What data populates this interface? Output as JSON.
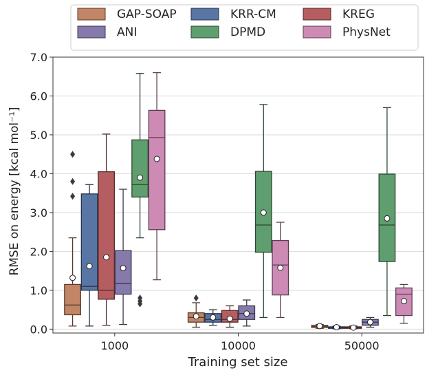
{
  "chart_data": {
    "type": "box",
    "xlabel": "Training set size",
    "ylabel": "RMSE on energy [kcal mol⁻¹]",
    "ylim": [
      -0.1,
      7.0
    ],
    "yticks": [
      "0.0",
      "1.0",
      "2.0",
      "3.0",
      "4.0",
      "5.0",
      "6.0",
      "7.0"
    ],
    "grid": "horizontal",
    "legend_placement": "top",
    "categories": [
      "1000",
      "10000",
      "50000"
    ],
    "series": [
      {
        "name": "GAP-SOAP",
        "color": "#c28565",
        "boxes": [
          {
            "whisker_low": 0.08,
            "q1": 0.37,
            "median": 0.62,
            "q3": 1.15,
            "whisker_high": 2.35,
            "mean": 1.32,
            "outliers": [
              3.42,
              3.8,
              4.5
            ]
          },
          {
            "whisker_low": 0.05,
            "q1": 0.18,
            "median": 0.3,
            "q3": 0.42,
            "whisker_high": 0.68,
            "mean": 0.33,
            "outliers": [
              0.8
            ]
          },
          {
            "whisker_low": 0.02,
            "q1": 0.04,
            "median": 0.07,
            "q3": 0.1,
            "whisker_high": 0.12,
            "mean": 0.08,
            "outliers": []
          }
        ]
      },
      {
        "name": "KRR-CM",
        "color": "#5975a4",
        "boxes": [
          {
            "whisker_low": 0.08,
            "q1": 1.0,
            "median": 1.1,
            "q3": 3.48,
            "whisker_high": 3.72,
            "mean": 1.62,
            "outliers": []
          },
          {
            "whisker_low": 0.1,
            "q1": 0.18,
            "median": 0.25,
            "q3": 0.4,
            "whisker_high": 0.5,
            "mean": 0.3,
            "outliers": []
          },
          {
            "whisker_low": 0.01,
            "q1": 0.02,
            "median": 0.04,
            "q3": 0.06,
            "whisker_high": 0.08,
            "mean": 0.05,
            "outliers": []
          }
        ]
      },
      {
        "name": "KREG",
        "color": "#b55d60",
        "boxes": [
          {
            "whisker_low": 0.1,
            "q1": 0.77,
            "median": 1.0,
            "q3": 4.05,
            "whisker_high": 5.02,
            "mean": 1.85,
            "outliers": []
          },
          {
            "whisker_low": 0.05,
            "q1": 0.18,
            "median": 0.25,
            "q3": 0.48,
            "whisker_high": 0.6,
            "mean": 0.27,
            "outliers": []
          },
          {
            "whisker_low": 0.01,
            "q1": 0.02,
            "median": 0.04,
            "q3": 0.06,
            "whisker_high": 0.08,
            "mean": 0.04,
            "outliers": []
          }
        ]
      },
      {
        "name": "ANI",
        "color": "#857aab",
        "boxes": [
          {
            "whisker_low": 0.12,
            "q1": 0.9,
            "median": 1.18,
            "q3": 2.02,
            "whisker_high": 3.6,
            "mean": 1.57,
            "outliers": []
          },
          {
            "whisker_low": 0.08,
            "q1": 0.25,
            "median": 0.4,
            "q3": 0.6,
            "whisker_high": 0.75,
            "mean": 0.4,
            "outliers": []
          },
          {
            "whisker_low": 0.05,
            "q1": 0.1,
            "median": 0.18,
            "q3": 0.25,
            "whisker_high": 0.3,
            "mean": 0.18,
            "outliers": []
          }
        ]
      },
      {
        "name": "DPMD",
        "color": "#5f9e6e",
        "boxes": [
          {
            "whisker_low": 2.35,
            "q1": 3.4,
            "median": 3.72,
            "q3": 4.87,
            "whisker_high": 6.58,
            "mean": 3.9,
            "outliers": [
              0.65,
              0.72,
              0.8
            ]
          },
          {
            "whisker_low": 0.3,
            "q1": 1.98,
            "median": 2.68,
            "q3": 4.06,
            "whisker_high": 5.78,
            "mean": 3.0,
            "outliers": []
          },
          {
            "whisker_low": 0.35,
            "q1": 1.74,
            "median": 2.68,
            "q3": 3.99,
            "whisker_high": 5.7,
            "mean": 2.85,
            "outliers": []
          }
        ]
      },
      {
        "name": "PhysNet",
        "color": "#cc8ab5",
        "boxes": [
          {
            "whisker_low": 1.27,
            "q1": 2.56,
            "median": 4.93,
            "q3": 5.63,
            "whisker_high": 6.6,
            "mean": 4.38,
            "outliers": []
          },
          {
            "whisker_low": 0.3,
            "q1": 0.88,
            "median": 1.65,
            "q3": 2.28,
            "whisker_high": 2.75,
            "mean": 1.58,
            "outliers": []
          },
          {
            "whisker_low": 0.15,
            "q1": 0.35,
            "median": 0.9,
            "q3": 1.06,
            "whisker_high": 1.15,
            "mean": 0.72,
            "outliers": []
          }
        ]
      }
    ]
  }
}
